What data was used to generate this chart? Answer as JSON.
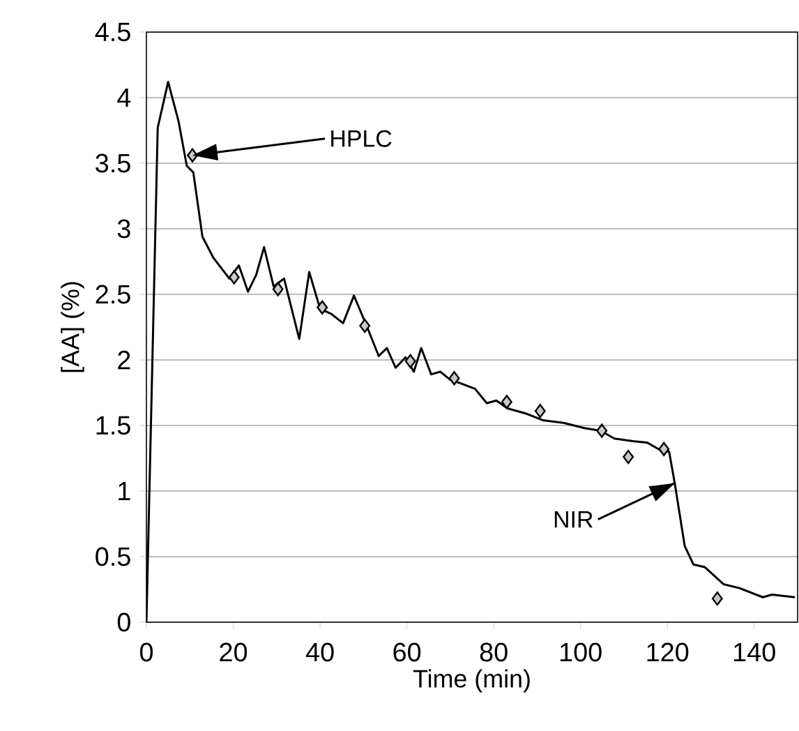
{
  "chart_data": {
    "type": "line",
    "xlabel": "Time (min)",
    "ylabel": "[AA] (%)",
    "xlim": [
      0,
      150
    ],
    "ylim": [
      0,
      4.5
    ],
    "xticks": [
      0,
      20,
      40,
      60,
      80,
      100,
      120,
      140
    ],
    "yticks": [
      0,
      0.5,
      1,
      1.5,
      2,
      2.5,
      3,
      3.5,
      4,
      4.5
    ],
    "grid": "y",
    "series": [
      {
        "color": "#000000",
        "marker": "none",
        "x": [
          0,
          2.6,
          5.0,
          7.4,
          9.3,
          10.8,
          12.9,
          15.4,
          19.1,
          21.3,
          23.4,
          25.3,
          27.1,
          29.3,
          31.7,
          35.2,
          37.5,
          40.0,
          42.6,
          45.3,
          47.8,
          50.6,
          53.5,
          55.4,
          57.4,
          59.7,
          61.6,
          63.3,
          65.6,
          67.7,
          69.9,
          72.5,
          75.7,
          78.4,
          80.6,
          83.2,
          87.5,
          91.3,
          96.1,
          100.9,
          104.6,
          107.8,
          112.1,
          115.3,
          118.5,
          120.4,
          121.7,
          124.0,
          126.0,
          128.6,
          132.9,
          136.6,
          142.0,
          144.1,
          149.4
        ],
        "values": [
          0,
          3.77,
          4.12,
          3.82,
          3.48,
          3.43,
          2.94,
          2.78,
          2.62,
          2.72,
          2.52,
          2.65,
          2.86,
          2.56,
          2.62,
          2.16,
          2.67,
          2.39,
          2.35,
          2.28,
          2.49,
          2.27,
          2.03,
          2.09,
          1.94,
          2.02,
          1.91,
          2.09,
          1.89,
          1.91,
          1.85,
          1.82,
          1.78,
          1.67,
          1.69,
          1.63,
          1.59,
          1.54,
          1.52,
          1.48,
          1.46,
          1.4,
          1.38,
          1.37,
          1.31,
          1.3,
          1.06,
          0.58,
          0.44,
          0.42,
          0.29,
          0.26,
          0.19,
          0.21,
          0.19
        ]
      },
      {
        "type": "scatter",
        "color": "#c8c8c8",
        "marker": "diamond",
        "x": [
          10.6,
          20.2,
          30.3,
          40.5,
          50.3,
          60.8,
          70.9,
          83.0,
          90.7,
          104.9,
          111.0,
          119.2,
          131.5
        ],
        "values": [
          3.56,
          2.63,
          2.54,
          2.4,
          2.26,
          1.99,
          1.86,
          1.68,
          1.61,
          1.46,
          1.26,
          1.32,
          0.18
        ]
      }
    ],
    "annotations": [
      {
        "text": "HPLC",
        "x": 10.6,
        "y": 3.56
      },
      {
        "text": "NIR",
        "x": 121.7,
        "y": 1.06
      }
    ]
  }
}
